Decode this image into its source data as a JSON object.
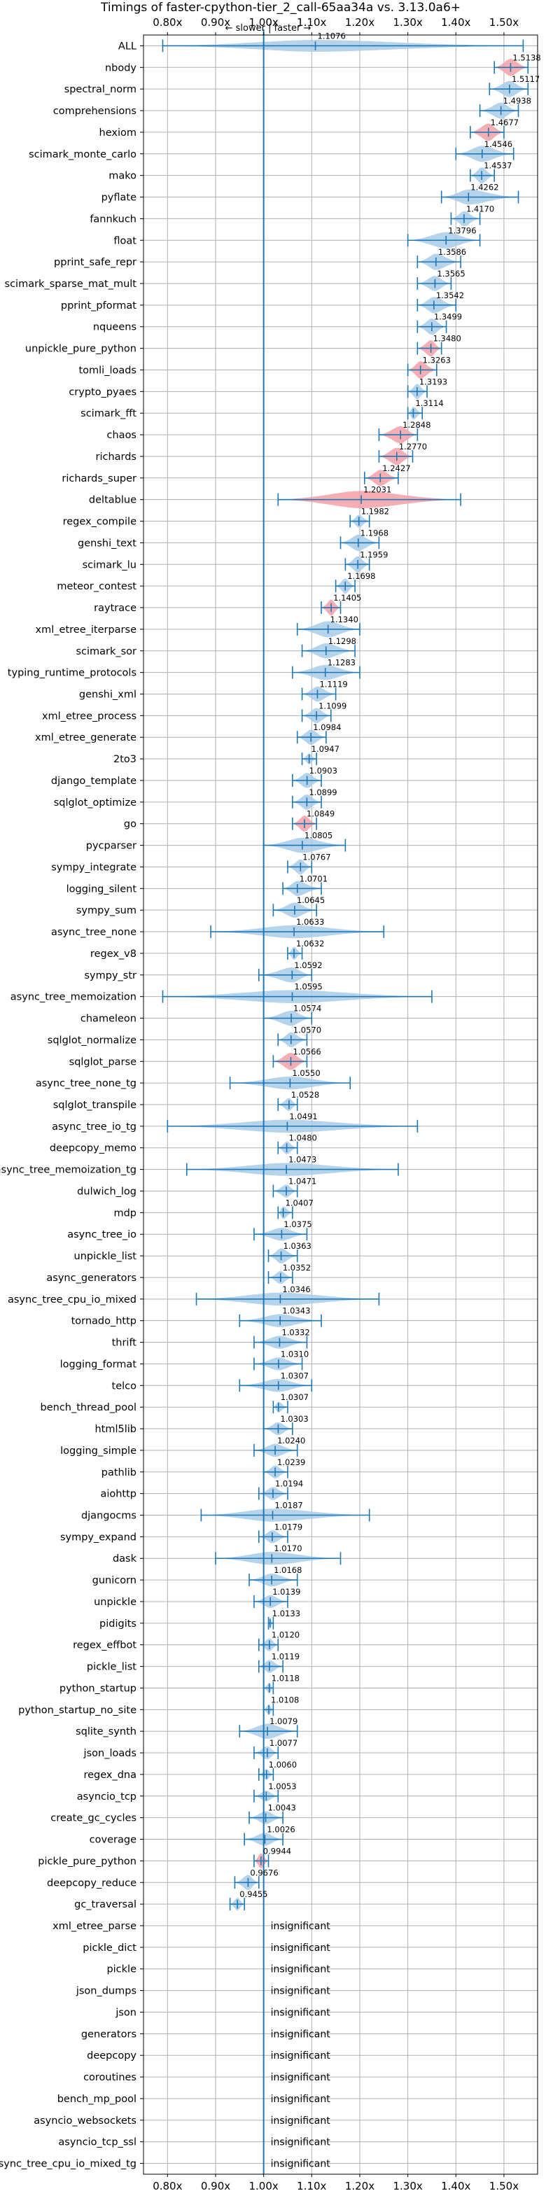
{
  "chart_data": {
    "type": "violin",
    "title": "Timings of faster-cpython-tier_2_call-65aa34a vs. 3.13.0a6+",
    "direction_note": "← slower | faster →",
    "xlim": [
      0.75,
      1.57
    ],
    "x_ticks": [
      0.8,
      0.9,
      1.0,
      1.1,
      1.2,
      1.3,
      1.4,
      1.5
    ],
    "x_tick_labels": [
      "0.80x",
      "0.90x",
      "1.00x",
      "1.10x",
      "1.20x",
      "1.30x",
      "1.40x",
      "1.50x"
    ],
    "reference_line": 1.0,
    "grid": true,
    "colors": {
      "faster": "#1f77b4",
      "fill_faster": "#a9cbe9",
      "fill_slower": "#f4a0a8",
      "slower_edge": "#e88b95"
    },
    "insignificant_label": "insignificant",
    "benchmarks": [
      {
        "name": "ALL",
        "value": 1.1076,
        "label": "1.1076",
        "lo": 0.79,
        "hi": 1.54,
        "width": 0.55,
        "color": "blue"
      },
      {
        "name": "nbody",
        "value": 1.5138,
        "label": "1.5138",
        "lo": 1.48,
        "hi": 1.55,
        "width": 0.8,
        "color": "red"
      },
      {
        "name": "spectral_norm",
        "value": 1.5117,
        "label": "1.5117",
        "lo": 1.47,
        "hi": 1.55,
        "width": 0.75,
        "color": "blue"
      },
      {
        "name": "comprehensions",
        "value": 1.4938,
        "label": "1.4938",
        "lo": 1.45,
        "hi": 1.53,
        "width": 0.75,
        "color": "blue"
      },
      {
        "name": "hexiom",
        "value": 1.4677,
        "label": "1.4677",
        "lo": 1.43,
        "hi": 1.5,
        "width": 0.8,
        "color": "red"
      },
      {
        "name": "scimark_monte_carlo",
        "value": 1.4546,
        "label": "1.4546",
        "lo": 1.4,
        "hi": 1.52,
        "width": 0.75,
        "color": "blue"
      },
      {
        "name": "mako",
        "value": 1.4537,
        "label": "1.4537",
        "lo": 1.43,
        "hi": 1.48,
        "width": 0.75,
        "color": "blue"
      },
      {
        "name": "pyflate",
        "value": 1.4262,
        "label": "1.4262",
        "lo": 1.37,
        "hi": 1.53,
        "width": 0.7,
        "color": "blue"
      },
      {
        "name": "fannkuch",
        "value": 1.417,
        "label": "1.4170",
        "lo": 1.39,
        "hi": 1.45,
        "width": 0.7,
        "color": "blue"
      },
      {
        "name": "float",
        "value": 1.3796,
        "label": "1.3796",
        "lo": 1.3,
        "hi": 1.45,
        "width": 0.75,
        "color": "blue"
      },
      {
        "name": "pprint_safe_repr",
        "value": 1.3586,
        "label": "1.3586",
        "lo": 1.32,
        "hi": 1.41,
        "width": 0.75,
        "color": "blue"
      },
      {
        "name": "scimark_sparse_mat_mult",
        "value": 1.3565,
        "label": "1.3565",
        "lo": 1.32,
        "hi": 1.39,
        "width": 0.7,
        "color": "blue"
      },
      {
        "name": "pprint_pformat",
        "value": 1.3542,
        "label": "1.3542",
        "lo": 1.32,
        "hi": 1.4,
        "width": 0.75,
        "color": "blue"
      },
      {
        "name": "nqueens",
        "value": 1.3499,
        "label": "1.3499",
        "lo": 1.32,
        "hi": 1.38,
        "width": 0.75,
        "color": "blue"
      },
      {
        "name": "unpickle_pure_python",
        "value": 1.348,
        "label": "1.3480",
        "lo": 1.32,
        "hi": 1.37,
        "width": 0.75,
        "color": "red"
      },
      {
        "name": "tomli_loads",
        "value": 1.3263,
        "label": "1.3263",
        "lo": 1.3,
        "hi": 1.36,
        "width": 0.8,
        "color": "red"
      },
      {
        "name": "crypto_pyaes",
        "value": 1.3193,
        "label": "1.3193",
        "lo": 1.3,
        "hi": 1.34,
        "width": 0.7,
        "color": "blue"
      },
      {
        "name": "scimark_fft",
        "value": 1.3114,
        "label": "1.3114",
        "lo": 1.3,
        "hi": 1.33,
        "width": 0.6,
        "color": "blue"
      },
      {
        "name": "chaos",
        "value": 1.2848,
        "label": "1.2848",
        "lo": 1.24,
        "hi": 1.32,
        "width": 0.8,
        "color": "red"
      },
      {
        "name": "richards",
        "value": 1.277,
        "label": "1.2770",
        "lo": 1.24,
        "hi": 1.31,
        "width": 0.8,
        "color": "red"
      },
      {
        "name": "richards_super",
        "value": 1.2427,
        "label": "1.2427",
        "lo": 1.21,
        "hi": 1.28,
        "width": 0.75,
        "color": "red"
      },
      {
        "name": "deltablue",
        "value": 1.2031,
        "label": "1.2031",
        "lo": 1.03,
        "hi": 1.41,
        "width": 0.8,
        "color": "red"
      },
      {
        "name": "regex_compile",
        "value": 1.1982,
        "label": "1.1982",
        "lo": 1.18,
        "hi": 1.22,
        "width": 0.6,
        "color": "blue"
      },
      {
        "name": "genshi_text",
        "value": 1.1968,
        "label": "1.1968",
        "lo": 1.16,
        "hi": 1.24,
        "width": 0.75,
        "color": "blue"
      },
      {
        "name": "scimark_lu",
        "value": 1.1959,
        "label": "1.1959",
        "lo": 1.17,
        "hi": 1.22,
        "width": 0.75,
        "color": "blue"
      },
      {
        "name": "meteor_contest",
        "value": 1.1698,
        "label": "1.1698",
        "lo": 1.15,
        "hi": 1.19,
        "width": 0.7,
        "color": "blue"
      },
      {
        "name": "raytrace",
        "value": 1.1405,
        "label": "1.1405",
        "lo": 1.12,
        "hi": 1.16,
        "width": 0.75,
        "color": "red"
      },
      {
        "name": "xml_etree_iterparse",
        "value": 1.134,
        "label": "1.1340",
        "lo": 1.07,
        "hi": 1.2,
        "width": 0.75,
        "color": "blue"
      },
      {
        "name": "scimark_sor",
        "value": 1.1298,
        "label": "1.1298",
        "lo": 1.08,
        "hi": 1.19,
        "width": 0.7,
        "color": "blue"
      },
      {
        "name": "typing_runtime_protocols",
        "value": 1.1283,
        "label": "1.1283",
        "lo": 1.06,
        "hi": 1.2,
        "width": 0.7,
        "color": "blue"
      },
      {
        "name": "genshi_xml",
        "value": 1.1119,
        "label": "1.1119",
        "lo": 1.08,
        "hi": 1.15,
        "width": 0.7,
        "color": "blue"
      },
      {
        "name": "xml_etree_process",
        "value": 1.1099,
        "label": "1.1099",
        "lo": 1.08,
        "hi": 1.14,
        "width": 0.7,
        "color": "blue"
      },
      {
        "name": "xml_etree_generate",
        "value": 1.0984,
        "label": "1.0984",
        "lo": 1.07,
        "hi": 1.13,
        "width": 0.7,
        "color": "blue"
      },
      {
        "name": "2to3",
        "value": 1.0947,
        "label": "1.0947",
        "lo": 1.08,
        "hi": 1.11,
        "width": 0.5,
        "color": "blue"
      },
      {
        "name": "django_template",
        "value": 1.0903,
        "label": "1.0903",
        "lo": 1.06,
        "hi": 1.12,
        "width": 0.7,
        "color": "blue"
      },
      {
        "name": "sqlglot_optimize",
        "value": 1.0899,
        "label": "1.0899",
        "lo": 1.06,
        "hi": 1.12,
        "width": 0.7,
        "color": "blue"
      },
      {
        "name": "go",
        "value": 1.0849,
        "label": "1.0849",
        "lo": 1.06,
        "hi": 1.11,
        "width": 0.75,
        "color": "red"
      },
      {
        "name": "pycparser",
        "value": 1.0805,
        "label": "1.0805",
        "lo": 1.0,
        "hi": 1.17,
        "width": 0.7,
        "color": "blue"
      },
      {
        "name": "sympy_integrate",
        "value": 1.0767,
        "label": "1.0767",
        "lo": 1.05,
        "hi": 1.1,
        "width": 0.7,
        "color": "blue"
      },
      {
        "name": "logging_silent",
        "value": 1.0701,
        "label": "1.0701",
        "lo": 1.04,
        "hi": 1.12,
        "width": 0.7,
        "color": "blue"
      },
      {
        "name": "sympy_sum",
        "value": 1.0645,
        "label": "1.0645",
        "lo": 1.02,
        "hi": 1.11,
        "width": 0.7,
        "color": "blue"
      },
      {
        "name": "async_tree_none",
        "value": 1.0633,
        "label": "1.0633",
        "lo": 0.89,
        "hi": 1.25,
        "width": 0.6,
        "color": "blue"
      },
      {
        "name": "regex_v8",
        "value": 1.0632,
        "label": "1.0632",
        "lo": 1.05,
        "hi": 1.08,
        "width": 0.6,
        "color": "blue"
      },
      {
        "name": "sympy_str",
        "value": 1.0592,
        "label": "1.0592",
        "lo": 0.99,
        "hi": 1.1,
        "width": 0.7,
        "color": "blue"
      },
      {
        "name": "async_tree_memoization",
        "value": 1.0595,
        "label": "1.0595",
        "lo": 0.79,
        "hi": 1.35,
        "width": 0.6,
        "color": "blue"
      },
      {
        "name": "chameleon",
        "value": 1.0574,
        "label": "1.0574",
        "lo": 1.0,
        "hi": 1.1,
        "width": 0.7,
        "color": "blue"
      },
      {
        "name": "sqlglot_normalize",
        "value": 1.057,
        "label": "1.0570",
        "lo": 1.03,
        "hi": 1.09,
        "width": 0.7,
        "color": "blue"
      },
      {
        "name": "sqlglot_parse",
        "value": 1.0566,
        "label": "1.0566",
        "lo": 1.02,
        "hi": 1.09,
        "width": 0.8,
        "color": "red"
      },
      {
        "name": "async_tree_none_tg",
        "value": 1.055,
        "label": "1.0550",
        "lo": 0.93,
        "hi": 1.18,
        "width": 0.6,
        "color": "blue"
      },
      {
        "name": "sqlglot_transpile",
        "value": 1.0528,
        "label": "1.0528",
        "lo": 1.03,
        "hi": 1.07,
        "width": 0.6,
        "color": "blue"
      },
      {
        "name": "async_tree_io_tg",
        "value": 1.0491,
        "label": "1.0491",
        "lo": 0.8,
        "hi": 1.32,
        "width": 0.6,
        "color": "blue"
      },
      {
        "name": "deepcopy_memo",
        "value": 1.048,
        "label": "1.0480",
        "lo": 1.03,
        "hi": 1.07,
        "width": 0.6,
        "color": "blue"
      },
      {
        "name": "async_tree_memoization_tg",
        "value": 1.0473,
        "label": "1.0473",
        "lo": 0.84,
        "hi": 1.28,
        "width": 0.6,
        "color": "blue"
      },
      {
        "name": "dulwich_log",
        "value": 1.0471,
        "label": "1.0471",
        "lo": 1.02,
        "hi": 1.07,
        "width": 0.6,
        "color": "blue"
      },
      {
        "name": "mdp",
        "value": 1.0407,
        "label": "1.0407",
        "lo": 1.03,
        "hi": 1.06,
        "width": 0.6,
        "color": "blue"
      },
      {
        "name": "async_tree_io",
        "value": 1.0375,
        "label": "1.0375",
        "lo": 0.98,
        "hi": 1.09,
        "width": 0.6,
        "color": "blue"
      },
      {
        "name": "unpickle_list",
        "value": 1.0363,
        "label": "1.0363",
        "lo": 1.01,
        "hi": 1.07,
        "width": 0.7,
        "color": "blue"
      },
      {
        "name": "async_generators",
        "value": 1.0352,
        "label": "1.0352",
        "lo": 1.01,
        "hi": 1.06,
        "width": 0.6,
        "color": "blue"
      },
      {
        "name": "async_tree_cpu_io_mixed",
        "value": 1.0346,
        "label": "1.0346",
        "lo": 0.86,
        "hi": 1.24,
        "width": 0.6,
        "color": "blue"
      },
      {
        "name": "tornado_http",
        "value": 1.0343,
        "label": "1.0343",
        "lo": 0.95,
        "hi": 1.12,
        "width": 0.6,
        "color": "blue"
      },
      {
        "name": "thrift",
        "value": 1.0332,
        "label": "1.0332",
        "lo": 0.98,
        "hi": 1.09,
        "width": 0.6,
        "color": "blue"
      },
      {
        "name": "logging_format",
        "value": 1.031,
        "label": "1.0310",
        "lo": 0.98,
        "hi": 1.08,
        "width": 0.6,
        "color": "blue"
      },
      {
        "name": "telco",
        "value": 1.0307,
        "label": "1.0307",
        "lo": 0.95,
        "hi": 1.1,
        "width": 0.6,
        "color": "blue"
      },
      {
        "name": "bench_thread_pool",
        "value": 1.0307,
        "label": "1.0307",
        "lo": 1.02,
        "hi": 1.05,
        "width": 0.5,
        "color": "blue"
      },
      {
        "name": "html5lib",
        "value": 1.0303,
        "label": "1.0303",
        "lo": 1.0,
        "hi": 1.06,
        "width": 0.6,
        "color": "blue"
      },
      {
        "name": "logging_simple",
        "value": 1.024,
        "label": "1.0240",
        "lo": 0.98,
        "hi": 1.07,
        "width": 0.6,
        "color": "blue"
      },
      {
        "name": "pathlib",
        "value": 1.0239,
        "label": "1.0239",
        "lo": 1.0,
        "hi": 1.05,
        "width": 0.6,
        "color": "blue"
      },
      {
        "name": "aiohttp",
        "value": 1.0194,
        "label": "1.0194",
        "lo": 0.99,
        "hi": 1.05,
        "width": 0.6,
        "color": "blue"
      },
      {
        "name": "djangocms",
        "value": 1.0187,
        "label": "1.0187",
        "lo": 0.87,
        "hi": 1.22,
        "width": 0.6,
        "color": "blue"
      },
      {
        "name": "sympy_expand",
        "value": 1.0179,
        "label": "1.0179",
        "lo": 0.99,
        "hi": 1.05,
        "width": 0.6,
        "color": "blue"
      },
      {
        "name": "dask",
        "value": 1.017,
        "label": "1.0170",
        "lo": 0.9,
        "hi": 1.16,
        "width": 0.6,
        "color": "blue"
      },
      {
        "name": "gunicorn",
        "value": 1.0168,
        "label": "1.0168",
        "lo": 0.97,
        "hi": 1.07,
        "width": 0.6,
        "color": "blue"
      },
      {
        "name": "unpickle",
        "value": 1.0139,
        "label": "1.0139",
        "lo": 0.98,
        "hi": 1.05,
        "width": 0.6,
        "color": "blue"
      },
      {
        "name": "pidigits",
        "value": 1.0133,
        "label": "1.0133",
        "lo": 1.01,
        "hi": 1.02,
        "width": 0.5,
        "color": "blue"
      },
      {
        "name": "regex_effbot",
        "value": 1.012,
        "label": "1.0120",
        "lo": 0.99,
        "hi": 1.03,
        "width": 0.6,
        "color": "blue"
      },
      {
        "name": "pickle_list",
        "value": 1.0119,
        "label": "1.0119",
        "lo": 0.99,
        "hi": 1.04,
        "width": 0.6,
        "color": "blue"
      },
      {
        "name": "python_startup",
        "value": 1.0118,
        "label": "1.0118",
        "lo": 1.0,
        "hi": 1.02,
        "width": 0.5,
        "color": "blue"
      },
      {
        "name": "python_startup_no_site",
        "value": 1.0108,
        "label": "1.0108",
        "lo": 1.0,
        "hi": 1.02,
        "width": 0.5,
        "color": "blue"
      },
      {
        "name": "sqlite_synth",
        "value": 1.0079,
        "label": "1.0079",
        "lo": 0.95,
        "hi": 1.07,
        "width": 0.7,
        "color": "blue"
      },
      {
        "name": "json_loads",
        "value": 1.0077,
        "label": "1.0077",
        "lo": 0.98,
        "hi": 1.03,
        "width": 0.6,
        "color": "blue"
      },
      {
        "name": "regex_dna",
        "value": 1.006,
        "label": "1.0060",
        "lo": 0.99,
        "hi": 1.02,
        "width": 0.5,
        "color": "blue"
      },
      {
        "name": "asyncio_tcp",
        "value": 1.0053,
        "label": "1.0053",
        "lo": 0.98,
        "hi": 1.03,
        "width": 0.5,
        "color": "blue"
      },
      {
        "name": "create_gc_cycles",
        "value": 1.0043,
        "label": "1.0043",
        "lo": 0.97,
        "hi": 1.04,
        "width": 0.6,
        "color": "blue"
      },
      {
        "name": "coverage",
        "value": 1.0026,
        "label": "1.0026",
        "lo": 0.96,
        "hi": 1.04,
        "width": 0.6,
        "color": "blue"
      },
      {
        "name": "pickle_pure_python",
        "value": 0.9944,
        "label": "0.9944",
        "lo": 0.98,
        "hi": 1.01,
        "width": 0.7,
        "color": "red"
      },
      {
        "name": "deepcopy_reduce",
        "value": 0.9676,
        "label": "0.9676",
        "lo": 0.94,
        "hi": 0.99,
        "width": 0.7,
        "color": "blue"
      },
      {
        "name": "gc_traversal",
        "value": 0.9455,
        "label": "0.9455",
        "lo": 0.93,
        "hi": 0.96,
        "width": 0.6,
        "color": "blue"
      },
      {
        "name": "xml_etree_parse",
        "insignificant": true
      },
      {
        "name": "pickle_dict",
        "insignificant": true
      },
      {
        "name": "pickle",
        "insignificant": true
      },
      {
        "name": "json_dumps",
        "insignificant": true
      },
      {
        "name": "json",
        "insignificant": true
      },
      {
        "name": "generators",
        "insignificant": true
      },
      {
        "name": "deepcopy",
        "insignificant": true
      },
      {
        "name": "coroutines",
        "insignificant": true
      },
      {
        "name": "bench_mp_pool",
        "insignificant": true
      },
      {
        "name": "asyncio_websockets",
        "insignificant": true
      },
      {
        "name": "asyncio_tcp_ssl",
        "insignificant": true
      },
      {
        "name": "async_tree_cpu_io_mixed_tg",
        "insignificant": true
      }
    ]
  }
}
